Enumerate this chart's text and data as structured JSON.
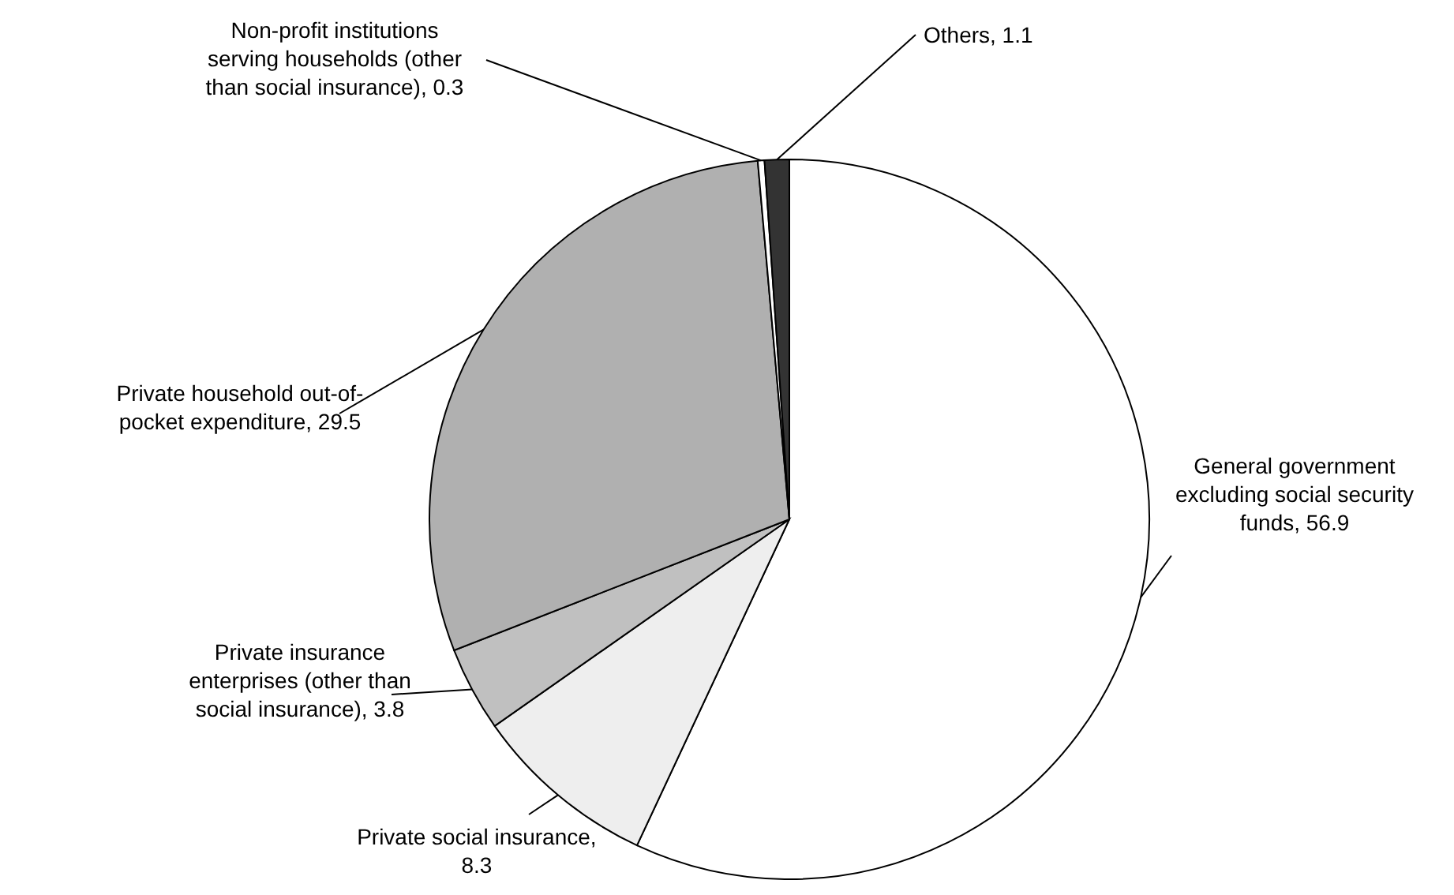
{
  "chart_data": {
    "type": "pie",
    "categories": [
      "General government excluding social security funds",
      "Private social insurance",
      "Private insurance enterprises (other than social insurance)",
      "Private household out-of-pocket expenditure",
      "Non-profit institutions serving households (other than social insurance)",
      "Others"
    ],
    "values": [
      56.9,
      8.3,
      3.8,
      29.5,
      0.3,
      1.1
    ],
    "colors": [
      "#ffffff",
      "#eeeeee",
      "#c0c0c0",
      "#b0b0b0",
      "#ffffff",
      "#333333"
    ],
    "value_labels": [
      ", 56.9",
      ", 8.3",
      ", 3.8",
      ", 29.5",
      ", 0.3",
      ", 1.1"
    ],
    "legend": false
  }
}
